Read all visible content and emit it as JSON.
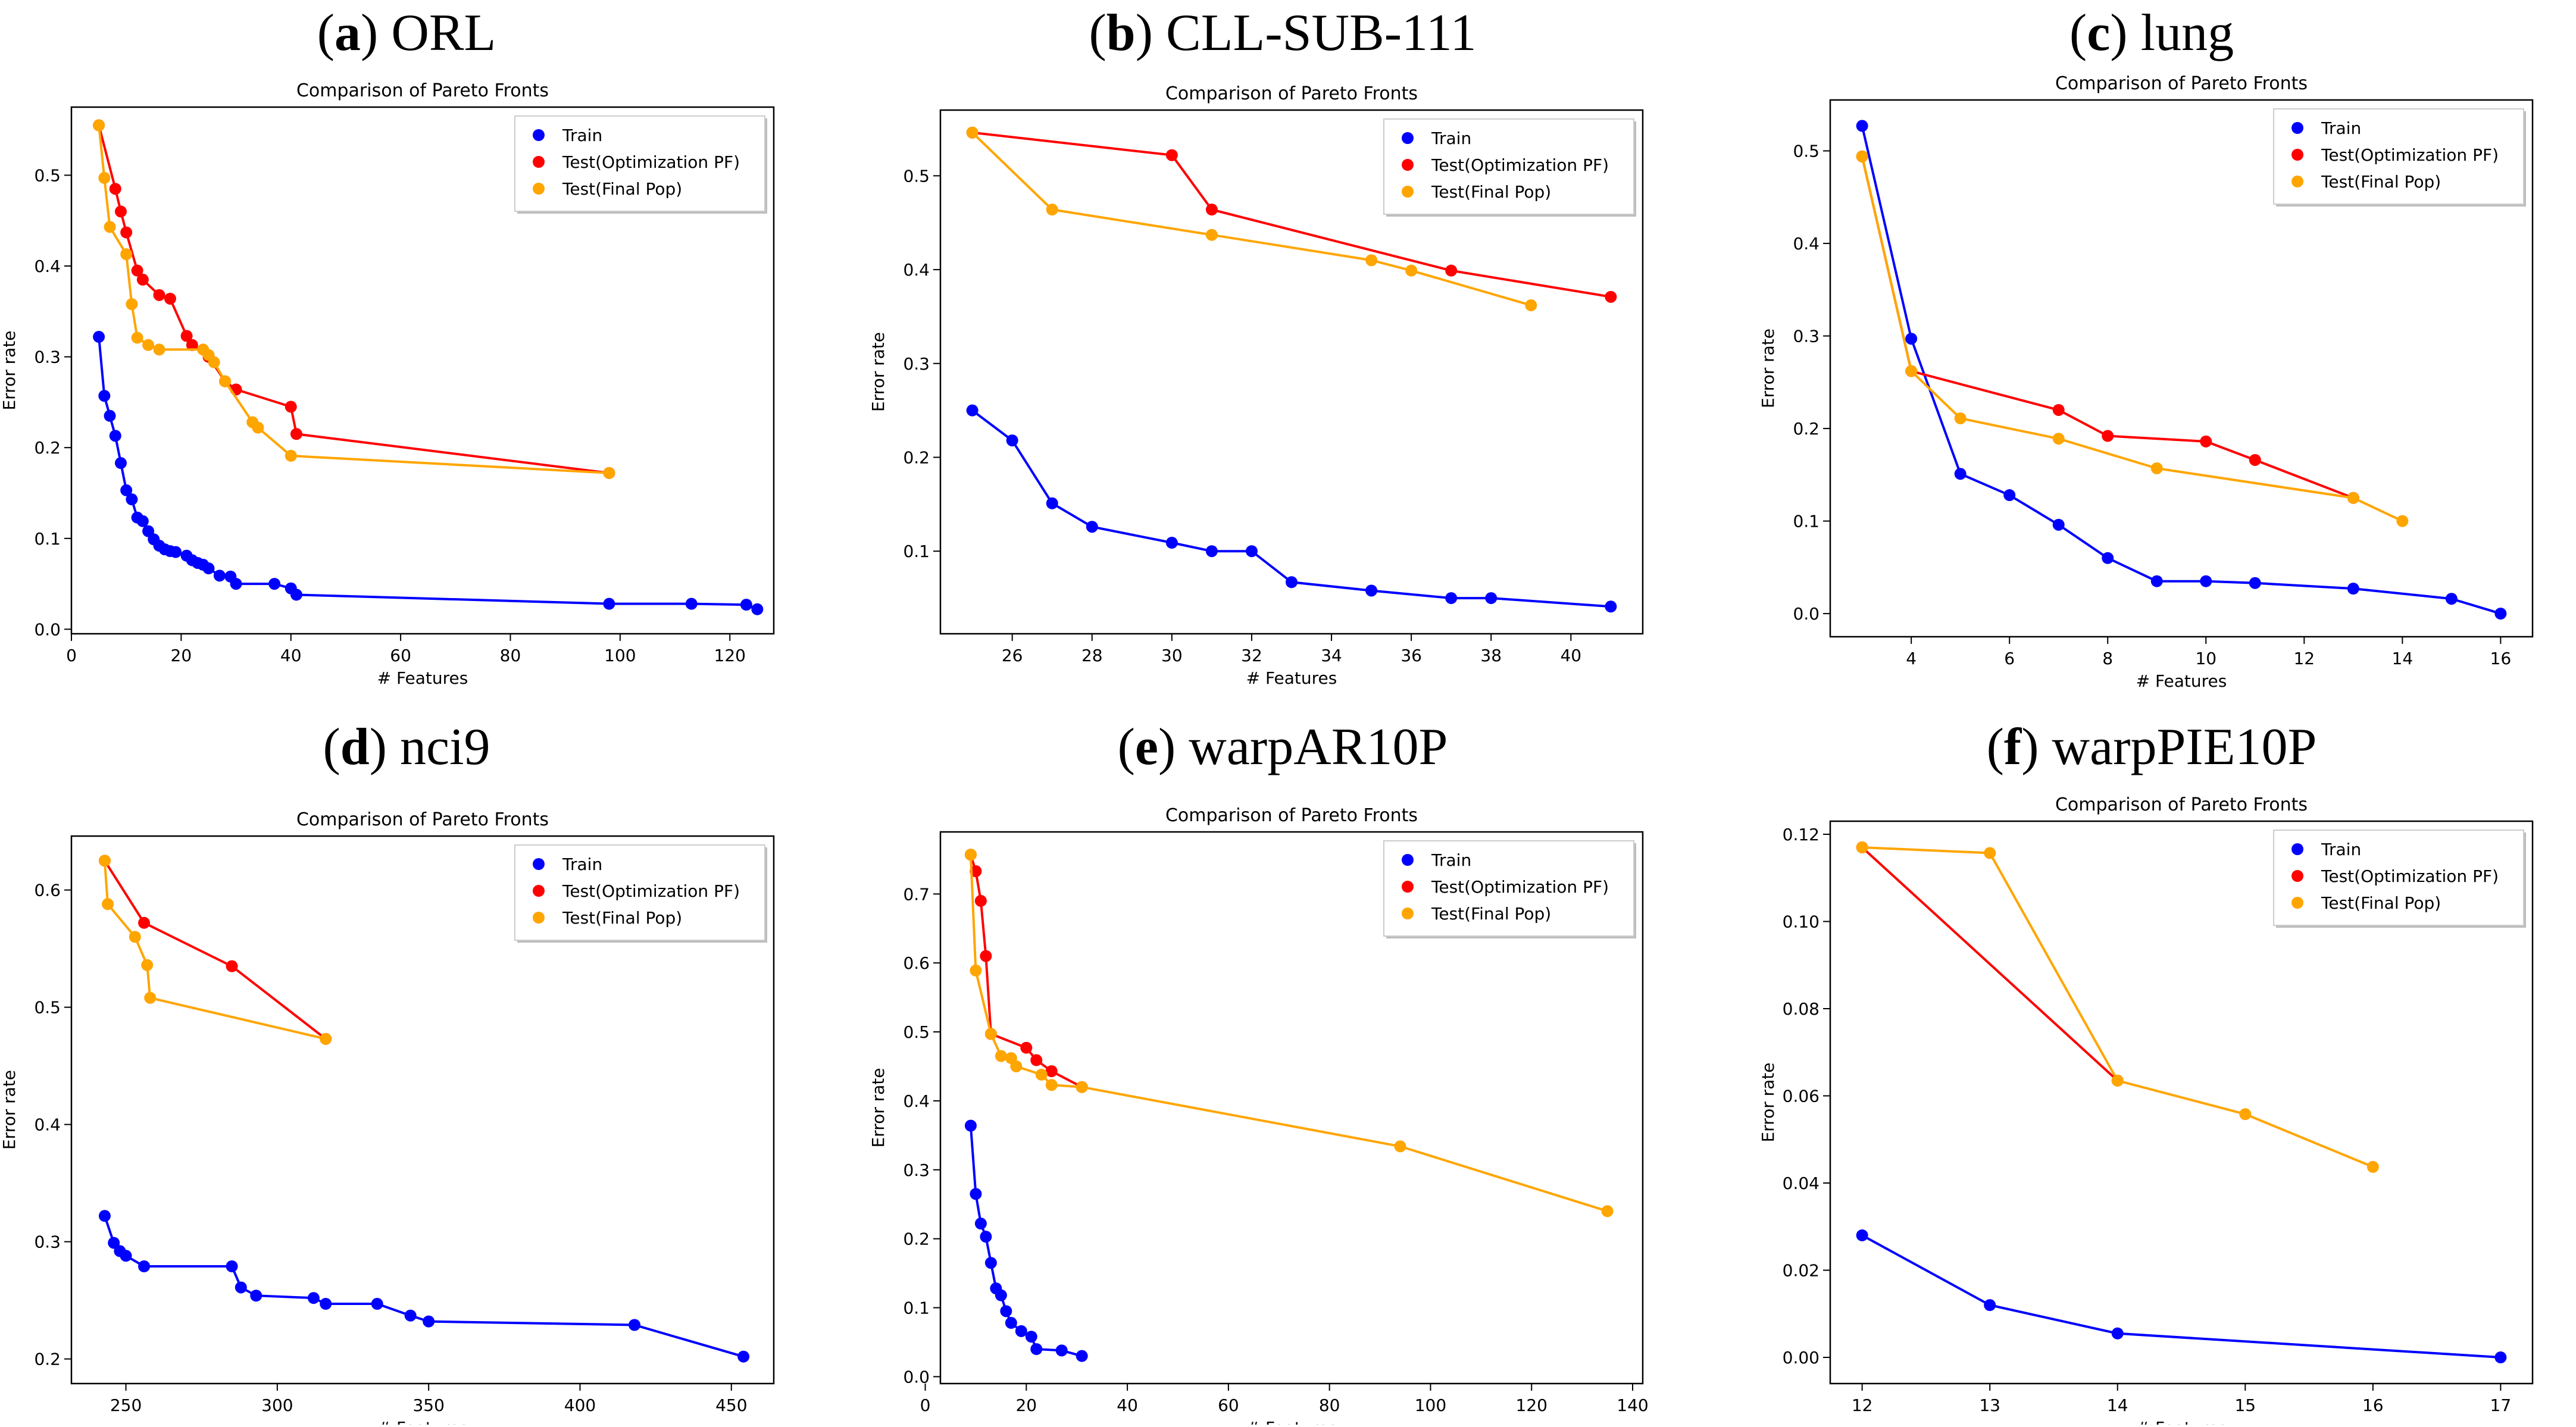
{
  "figure_captions": [
    {
      "letter": "a",
      "name": "ORL"
    },
    {
      "letter": "b",
      "name": "CLL-SUB-111"
    },
    {
      "letter": "c",
      "name": "lung"
    },
    {
      "letter": "d",
      "name": "nci9"
    },
    {
      "letter": "e",
      "name": "warpAR10P"
    },
    {
      "letter": "f",
      "name": "warpPIE10P"
    }
  ],
  "colors": {
    "train": "#0000ff",
    "test_opt": "#ff0000",
    "test_final": "#ffa500"
  },
  "chart_data": [
    {
      "type": "line",
      "title": "Comparison of Pareto Fronts",
      "xlabel": "# Features",
      "ylabel": "Error rate",
      "xlim": [
        0,
        128
      ],
      "ylim": [
        -0.005,
        0.575
      ],
      "xticks": [
        0,
        20,
        40,
        60,
        80,
        100,
        120
      ],
      "yticks": [
        0.0,
        0.1,
        0.2,
        0.3,
        0.4,
        0.5
      ],
      "yfmt": 1,
      "legend_position": "top-right",
      "legend": [
        "Train",
        "Test(Optimization PF)",
        "Test(Final Pop)"
      ],
      "series": [
        {
          "name": "Train",
          "x": [
            5,
            6,
            7,
            8,
            9,
            10,
            11,
            12,
            13,
            14,
            15,
            16,
            17,
            18,
            19,
            21,
            22,
            23,
            24,
            25,
            27,
            29,
            30,
            37,
            40,
            41,
            98,
            113,
            123,
            125
          ],
          "y": [
            0.322,
            0.257,
            0.235,
            0.213,
            0.183,
            0.153,
            0.143,
            0.123,
            0.119,
            0.108,
            0.099,
            0.092,
            0.088,
            0.086,
            0.085,
            0.081,
            0.076,
            0.073,
            0.071,
            0.067,
            0.059,
            0.058,
            0.05,
            0.05,
            0.045,
            0.038,
            0.028,
            0.028,
            0.027,
            0.022
          ]
        },
        {
          "name": "Test(Optimization PF)",
          "x": [
            5,
            8,
            9,
            10,
            12,
            13,
            16,
            18,
            21,
            22,
            25,
            28,
            30,
            40,
            41,
            98
          ],
          "y": [
            0.555,
            0.485,
            0.46,
            0.437,
            0.395,
            0.385,
            0.368,
            0.364,
            0.323,
            0.313,
            0.3,
            0.273,
            0.264,
            0.245,
            0.215,
            0.172
          ]
        },
        {
          "name": "Test(Final Pop)",
          "x": [
            5,
            6,
            7,
            10,
            11,
            12,
            14,
            16,
            24,
            25,
            26,
            28,
            33,
            34,
            40,
            98
          ],
          "y": [
            0.555,
            0.497,
            0.443,
            0.413,
            0.358,
            0.321,
            0.313,
            0.308,
            0.308,
            0.302,
            0.294,
            0.273,
            0.228,
            0.222,
            0.191,
            0.172
          ]
        }
      ]
    },
    {
      "type": "line",
      "title": "Comparison of Pareto Fronts",
      "xlabel": "# Features",
      "ylabel": "Error rate",
      "xlim": [
        24.2,
        41.8
      ],
      "ylim": [
        0.012,
        0.57
      ],
      "xticks": [
        26,
        28,
        30,
        32,
        34,
        36,
        38,
        40
      ],
      "yticks": [
        0.1,
        0.2,
        0.3,
        0.4,
        0.5
      ],
      "yfmt": 1,
      "legend_position": "top-right",
      "legend": [
        "Train",
        "Test(Optimization PF)",
        "Test(Final Pop)"
      ],
      "series": [
        {
          "name": "Train",
          "x": [
            25,
            26,
            27,
            28,
            30,
            31,
            32,
            33,
            35,
            37,
            38,
            41
          ],
          "y": [
            0.25,
            0.218,
            0.151,
            0.126,
            0.109,
            0.1,
            0.1,
            0.067,
            0.058,
            0.05,
            0.05,
            0.041
          ]
        },
        {
          "name": "Test(Optimization PF)",
          "x": [
            25,
            30,
            31,
            37,
            41
          ],
          "y": [
            0.546,
            0.522,
            0.464,
            0.399,
            0.371
          ]
        },
        {
          "name": "Test(Final Pop)",
          "x": [
            25,
            27,
            31,
            35,
            36,
            39
          ],
          "y": [
            0.546,
            0.464,
            0.437,
            0.41,
            0.399,
            0.362
          ]
        }
      ]
    },
    {
      "type": "line",
      "title": "Comparison of Pareto Fronts",
      "xlabel": "# Features",
      "ylabel": "Error rate",
      "xlim": [
        2.35,
        16.65
      ],
      "ylim": [
        -0.025,
        0.555
      ],
      "xticks": [
        4,
        6,
        8,
        10,
        12,
        14,
        16
      ],
      "yticks": [
        0.0,
        0.1,
        0.2,
        0.3,
        0.4,
        0.5
      ],
      "yfmt": 1,
      "legend_position": "top-right",
      "legend": [
        "Train",
        "Test(Optimization PF)",
        "Test(Final Pop)"
      ],
      "series": [
        {
          "name": "Train",
          "x": [
            3,
            4,
            5,
            6,
            7,
            8,
            9,
            10,
            11,
            13,
            15,
            16
          ],
          "y": [
            0.527,
            0.297,
            0.151,
            0.128,
            0.096,
            0.06,
            0.035,
            0.035,
            0.033,
            0.027,
            0.016,
            0.0
          ]
        },
        {
          "name": "Test(Optimization PF)",
          "x": [
            3,
            4,
            7,
            8,
            10,
            11,
            13
          ],
          "y": [
            0.494,
            0.262,
            0.22,
            0.192,
            0.186,
            0.166,
            0.125
          ]
        },
        {
          "name": "Test(Final Pop)",
          "x": [
            3,
            4,
            5,
            7,
            9,
            13,
            14
          ],
          "y": [
            0.494,
            0.262,
            0.211,
            0.189,
            0.157,
            0.125,
            0.1
          ]
        }
      ]
    },
    {
      "type": "line",
      "title": "Comparison of Pareto Fronts",
      "xlabel": "# Features",
      "ylabel": "Error rate",
      "xlim": [
        232,
        464
      ],
      "ylim": [
        0.179,
        0.646
      ],
      "xticks": [
        250,
        300,
        350,
        400,
        450
      ],
      "yticks": [
        0.2,
        0.3,
        0.4,
        0.5,
        0.6
      ],
      "yfmt": 1,
      "legend_position": "top-right",
      "legend": [
        "Train",
        "Test(Optimization PF)",
        "Test(Final Pop)"
      ],
      "series": [
        {
          "name": "Train",
          "x": [
            243,
            246,
            248,
            250,
            256,
            285,
            288,
            293,
            312,
            316,
            333,
            344,
            350,
            418,
            454
          ],
          "y": [
            0.322,
            0.299,
            0.292,
            0.288,
            0.279,
            0.279,
            0.261,
            0.254,
            0.252,
            0.247,
            0.247,
            0.237,
            0.232,
            0.229,
            0.202
          ]
        },
        {
          "name": "Test(Optimization PF)",
          "x": [
            243,
            256,
            285,
            316
          ],
          "y": [
            0.625,
            0.572,
            0.535,
            0.473
          ]
        },
        {
          "name": "Test(Final Pop)",
          "x": [
            243,
            244,
            253,
            257,
            258,
            316
          ],
          "y": [
            0.625,
            0.588,
            0.56,
            0.536,
            0.508,
            0.473
          ]
        }
      ]
    },
    {
      "type": "line",
      "title": "Comparison of Pareto Fronts",
      "xlabel": "# Features",
      "ylabel": "Error rate",
      "xlim": [
        3,
        142
      ],
      "ylim": [
        -0.01,
        0.79
      ],
      "xticks": [
        0,
        20,
        40,
        60,
        80,
        100,
        120,
        140
      ],
      "yticks": [
        0.0,
        0.1,
        0.2,
        0.3,
        0.4,
        0.5,
        0.6,
        0.7
      ],
      "yfmt": 1,
      "legend_position": "top-right",
      "legend": [
        "Train",
        "Test(Optimization PF)",
        "Test(Final Pop)"
      ],
      "series": [
        {
          "name": "Train",
          "x": [
            9,
            10,
            11,
            12,
            13,
            14,
            15,
            16,
            17,
            19,
            21,
            22,
            27,
            31
          ],
          "y": [
            0.364,
            0.265,
            0.222,
            0.203,
            0.165,
            0.128,
            0.118,
            0.095,
            0.078,
            0.066,
            0.058,
            0.04,
            0.038,
            0.03
          ]
        },
        {
          "name": "Test(Optimization PF)",
          "x": [
            9,
            10,
            11,
            12,
            13,
            20,
            22,
            25,
            31
          ],
          "y": [
            0.757,
            0.733,
            0.69,
            0.61,
            0.497,
            0.477,
            0.459,
            0.443,
            0.42
          ]
        },
        {
          "name": "Test(Final Pop)",
          "x": [
            9,
            10,
            13,
            15,
            17,
            18,
            23,
            25,
            31,
            94,
            135
          ],
          "y": [
            0.757,
            0.589,
            0.497,
            0.465,
            0.462,
            0.45,
            0.438,
            0.423,
            0.42,
            0.334,
            0.24
          ]
        }
      ]
    },
    {
      "type": "line",
      "title": "Comparison of Pareto Fronts",
      "xlabel": "# Features",
      "ylabel": "Error rate",
      "xlim": [
        11.75,
        17.25
      ],
      "ylim": [
        -0.006,
        0.123
      ],
      "xticks": [
        12,
        13,
        14,
        15,
        16,
        17
      ],
      "yticks": [
        0.0,
        0.02,
        0.04,
        0.06,
        0.08,
        0.1,
        0.12
      ],
      "yfmt": 2,
      "legend_position": "top-right",
      "legend": [
        "Train",
        "Test(Optimization PF)",
        "Test(Final Pop)"
      ],
      "series": [
        {
          "name": "Train",
          "x": [
            12,
            13,
            14,
            17
          ],
          "y": [
            0.028,
            0.012,
            0.0055,
            0.0
          ]
        },
        {
          "name": "Test(Optimization PF)",
          "x": [
            12,
            14
          ],
          "y": [
            0.117,
            0.0635
          ]
        },
        {
          "name": "Test(Final Pop)",
          "x": [
            12,
            13,
            14,
            15,
            16
          ],
          "y": [
            0.117,
            0.1157,
            0.0635,
            0.0558,
            0.0437
          ]
        }
      ]
    }
  ]
}
